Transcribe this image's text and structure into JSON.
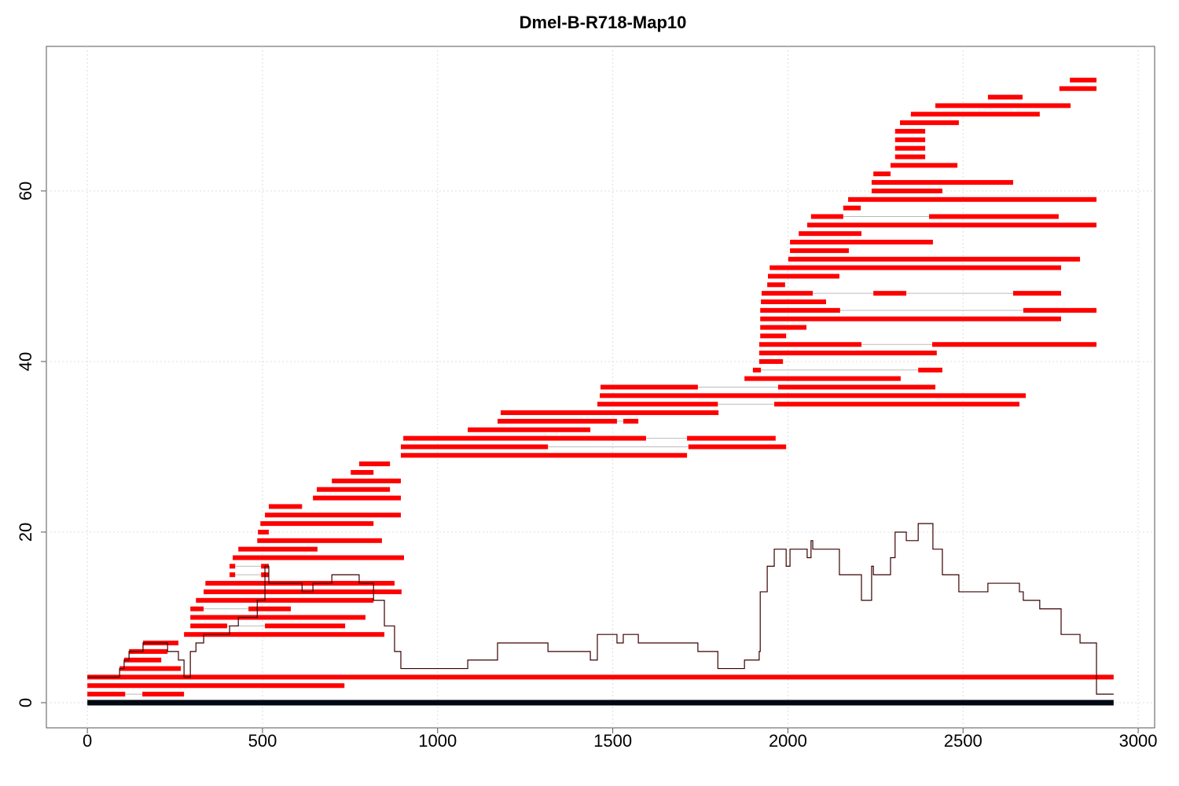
{
  "chart_data": {
    "type": "alignment-map",
    "title": "Dmel-B-R718-Map10",
    "xlim": [
      -117,
      3047
    ],
    "ylim": [
      -2.95,
      76.95
    ],
    "xticks": [
      0,
      500,
      1000,
      1500,
      2000,
      2500,
      3000
    ],
    "yticks": [
      0,
      20,
      40,
      60
    ],
    "grid": true,
    "reference": {
      "y": 0,
      "start": 0,
      "end": 2930,
      "color": "#000814"
    },
    "alignments": {
      "color": "#ff0000",
      "rows": [
        {
          "y": 1,
          "segments": [
            [
              0,
              108
            ],
            [
              157,
              276
            ]
          ]
        },
        {
          "y": 2,
          "segments": [
            [
              0,
              734
            ]
          ]
        },
        {
          "y": 3,
          "segments": [
            [
              0,
              2930
            ]
          ]
        },
        {
          "y": 4,
          "segments": [
            [
              92,
              267
            ]
          ]
        },
        {
          "y": 5,
          "segments": [
            [
              105,
              211
            ]
          ]
        },
        {
          "y": 6,
          "segments": [
            [
              119,
              229
            ]
          ]
        },
        {
          "y": 7,
          "segments": [
            [
              159,
              260
            ]
          ]
        },
        {
          "y": 8,
          "segments": [
            [
              276,
              848
            ]
          ]
        },
        {
          "y": 9,
          "segments": [
            [
              294,
              399
            ],
            [
              507,
              736
            ]
          ]
        },
        {
          "y": 10,
          "segments": [
            [
              294,
              794
            ]
          ]
        },
        {
          "y": 11,
          "segments": [
            [
              294,
              332
            ],
            [
              460,
              581
            ]
          ]
        },
        {
          "y": 12,
          "segments": [
            [
              310,
              817
            ]
          ]
        },
        {
          "y": 13,
          "segments": [
            [
              332,
              897
            ]
          ]
        },
        {
          "y": 14,
          "segments": [
            [
              337,
              877
            ]
          ]
        },
        {
          "y": 15,
          "segments": [
            [
              406,
              422
            ],
            [
              496,
              518
            ]
          ]
        },
        {
          "y": 16,
          "segments": [
            [
              406,
              422
            ],
            [
              496,
              518
            ]
          ]
        },
        {
          "y": 17,
          "segments": [
            [
              415,
              904
            ]
          ]
        },
        {
          "y": 18,
          "segments": [
            [
              431,
              657
            ]
          ]
        },
        {
          "y": 19,
          "segments": [
            [
              485,
              841
            ]
          ]
        },
        {
          "y": 20,
          "segments": [
            [
              487,
              518
            ]
          ]
        },
        {
          "y": 21,
          "segments": [
            [
              494,
              817
            ]
          ]
        },
        {
          "y": 22,
          "segments": [
            [
              507,
              895
            ]
          ]
        },
        {
          "y": 23,
          "segments": [
            [
              518,
              613
            ]
          ]
        },
        {
          "y": 24,
          "segments": [
            [
              644,
              895
            ]
          ]
        },
        {
          "y": 25,
          "segments": [
            [
              655,
              864
            ]
          ]
        },
        {
          "y": 26,
          "segments": [
            [
              698,
              895
            ]
          ]
        },
        {
          "y": 27,
          "segments": [
            [
              752,
              817
            ]
          ]
        },
        {
          "y": 28,
          "segments": [
            [
              776,
              864
            ]
          ]
        },
        {
          "y": 29,
          "segments": [
            [
              895,
              1712
            ]
          ]
        },
        {
          "y": 30,
          "segments": [
            [
              895,
              1315
            ],
            [
              1716,
              1995
            ]
          ]
        },
        {
          "y": 31,
          "segments": [
            [
              902,
              1595
            ],
            [
              1712,
              1965
            ]
          ]
        },
        {
          "y": 32,
          "segments": [
            [
              1086,
              1436
            ]
          ]
        },
        {
          "y": 33,
          "segments": [
            [
              1171,
              1512
            ],
            [
              1530,
              1573
            ]
          ]
        },
        {
          "y": 34,
          "segments": [
            [
              1180,
              1802
            ]
          ]
        },
        {
          "y": 35,
          "segments": [
            [
              1456,
              1800
            ],
            [
              1961,
              2661
            ]
          ]
        },
        {
          "y": 36,
          "segments": [
            [
              1463,
              2679
            ]
          ]
        },
        {
          "y": 37,
          "segments": [
            [
              1465,
              1743
            ],
            [
              1972,
              2421
            ]
          ]
        },
        {
          "y": 38,
          "segments": [
            [
              1876,
              2322
            ]
          ]
        },
        {
          "y": 39,
          "segments": [
            [
              1900,
              1923
            ],
            [
              2372,
              2441
            ]
          ]
        },
        {
          "y": 40,
          "segments": [
            [
              1918,
              1986
            ]
          ]
        },
        {
          "y": 41,
          "segments": [
            [
              1918,
              2425
            ]
          ]
        },
        {
          "y": 42,
          "segments": [
            [
              1918,
              2210
            ],
            [
              2412,
              2881
            ]
          ]
        },
        {
          "y": 43,
          "segments": [
            [
              1921,
              1995
            ]
          ]
        },
        {
          "y": 44,
          "segments": [
            [
              1921,
              2053
            ]
          ]
        },
        {
          "y": 45,
          "segments": [
            [
              1921,
              2780
            ]
          ]
        },
        {
          "y": 46,
          "segments": [
            [
              1921,
              2149
            ],
            [
              2672,
              2881
            ]
          ]
        },
        {
          "y": 47,
          "segments": [
            [
              1923,
              2109
            ]
          ]
        },
        {
          "y": 48,
          "segments": [
            [
              1925,
              2071
            ],
            [
              2244,
              2338
            ],
            [
              2643,
              2780
            ]
          ]
        },
        {
          "y": 49,
          "segments": [
            [
              1941,
              1992
            ]
          ]
        },
        {
          "y": 50,
          "segments": [
            [
              1943,
              2147
            ]
          ]
        },
        {
          "y": 51,
          "segments": [
            [
              1948,
              2780
            ]
          ]
        },
        {
          "y": 52,
          "segments": [
            [
              2001,
              2834
            ]
          ]
        },
        {
          "y": 53,
          "segments": [
            [
              2006,
              2174
            ]
          ]
        },
        {
          "y": 54,
          "segments": [
            [
              2006,
              2414
            ]
          ]
        },
        {
          "y": 55,
          "segments": [
            [
              2031,
              2210
            ]
          ]
        },
        {
          "y": 56,
          "segments": [
            [
              2055,
              2881
            ]
          ]
        },
        {
          "y": 57,
          "segments": [
            [
              2066,
              2158
            ],
            [
              2403,
              2773
            ]
          ]
        },
        {
          "y": 58,
          "segments": [
            [
              2158,
              2208
            ]
          ]
        },
        {
          "y": 59,
          "segments": [
            [
              2172,
              2881
            ]
          ]
        },
        {
          "y": 60,
          "segments": [
            [
              2239,
              2441
            ]
          ]
        },
        {
          "y": 61,
          "segments": [
            [
              2239,
              2643
            ]
          ]
        },
        {
          "y": 62,
          "segments": [
            [
              2244,
              2293
            ]
          ]
        },
        {
          "y": 63,
          "segments": [
            [
              2293,
              2484
            ]
          ]
        },
        {
          "y": 64,
          "segments": [
            [
              2306,
              2392
            ]
          ]
        },
        {
          "y": 65,
          "segments": [
            [
              2306,
              2392
            ]
          ]
        },
        {
          "y": 66,
          "segments": [
            [
              2306,
              2392
            ]
          ]
        },
        {
          "y": 67,
          "segments": [
            [
              2306,
              2392
            ]
          ]
        },
        {
          "y": 68,
          "segments": [
            [
              2320,
              2488
            ]
          ]
        },
        {
          "y": 69,
          "segments": [
            [
              2351,
              2719
            ]
          ]
        },
        {
          "y": 70,
          "segments": [
            [
              2421,
              2807
            ]
          ]
        },
        {
          "y": 71,
          "segments": [
            [
              2571,
              2670
            ]
          ]
        },
        {
          "y": 72,
          "segments": [
            [
              2775,
              2881
            ]
          ]
        },
        {
          "y": 73,
          "segments": [
            [
              2805,
              2881
            ]
          ]
        }
      ]
    },
    "coverage": {
      "color": "#3b0000",
      "x": [
        0,
        92,
        105,
        119,
        159,
        229,
        260,
        276,
        294,
        310,
        332,
        406,
        431,
        485,
        507,
        518,
        613,
        644,
        698,
        776,
        817,
        848,
        877,
        895,
        1086,
        1171,
        1315,
        1436,
        1456,
        1512,
        1530,
        1573,
        1743,
        1800,
        1876,
        1918,
        1921,
        1941,
        1961,
        1995,
        2006,
        2055,
        2066,
        2071,
        2147,
        2210,
        2239,
        2244,
        2293,
        2306,
        2338,
        2372,
        2414,
        2441,
        2488,
        2571,
        2661,
        2672,
        2719,
        2780,
        2834,
        2881,
        2930
      ],
      "values": [
        3,
        4,
        5,
        6,
        7,
        6,
        5,
        3,
        6,
        7,
        8,
        9,
        10,
        12,
        16,
        14,
        13,
        14,
        15,
        14,
        12,
        9,
        6,
        4,
        5,
        7,
        6,
        5,
        8,
        7,
        8,
        7,
        6,
        4,
        5,
        6,
        13,
        16,
        18,
        16,
        18,
        17,
        19,
        18,
        15,
        12,
        16,
        15,
        17,
        20,
        19,
        21,
        18,
        15,
        13,
        14,
        13,
        12,
        11,
        8,
        7,
        1,
        1
      ]
    }
  }
}
